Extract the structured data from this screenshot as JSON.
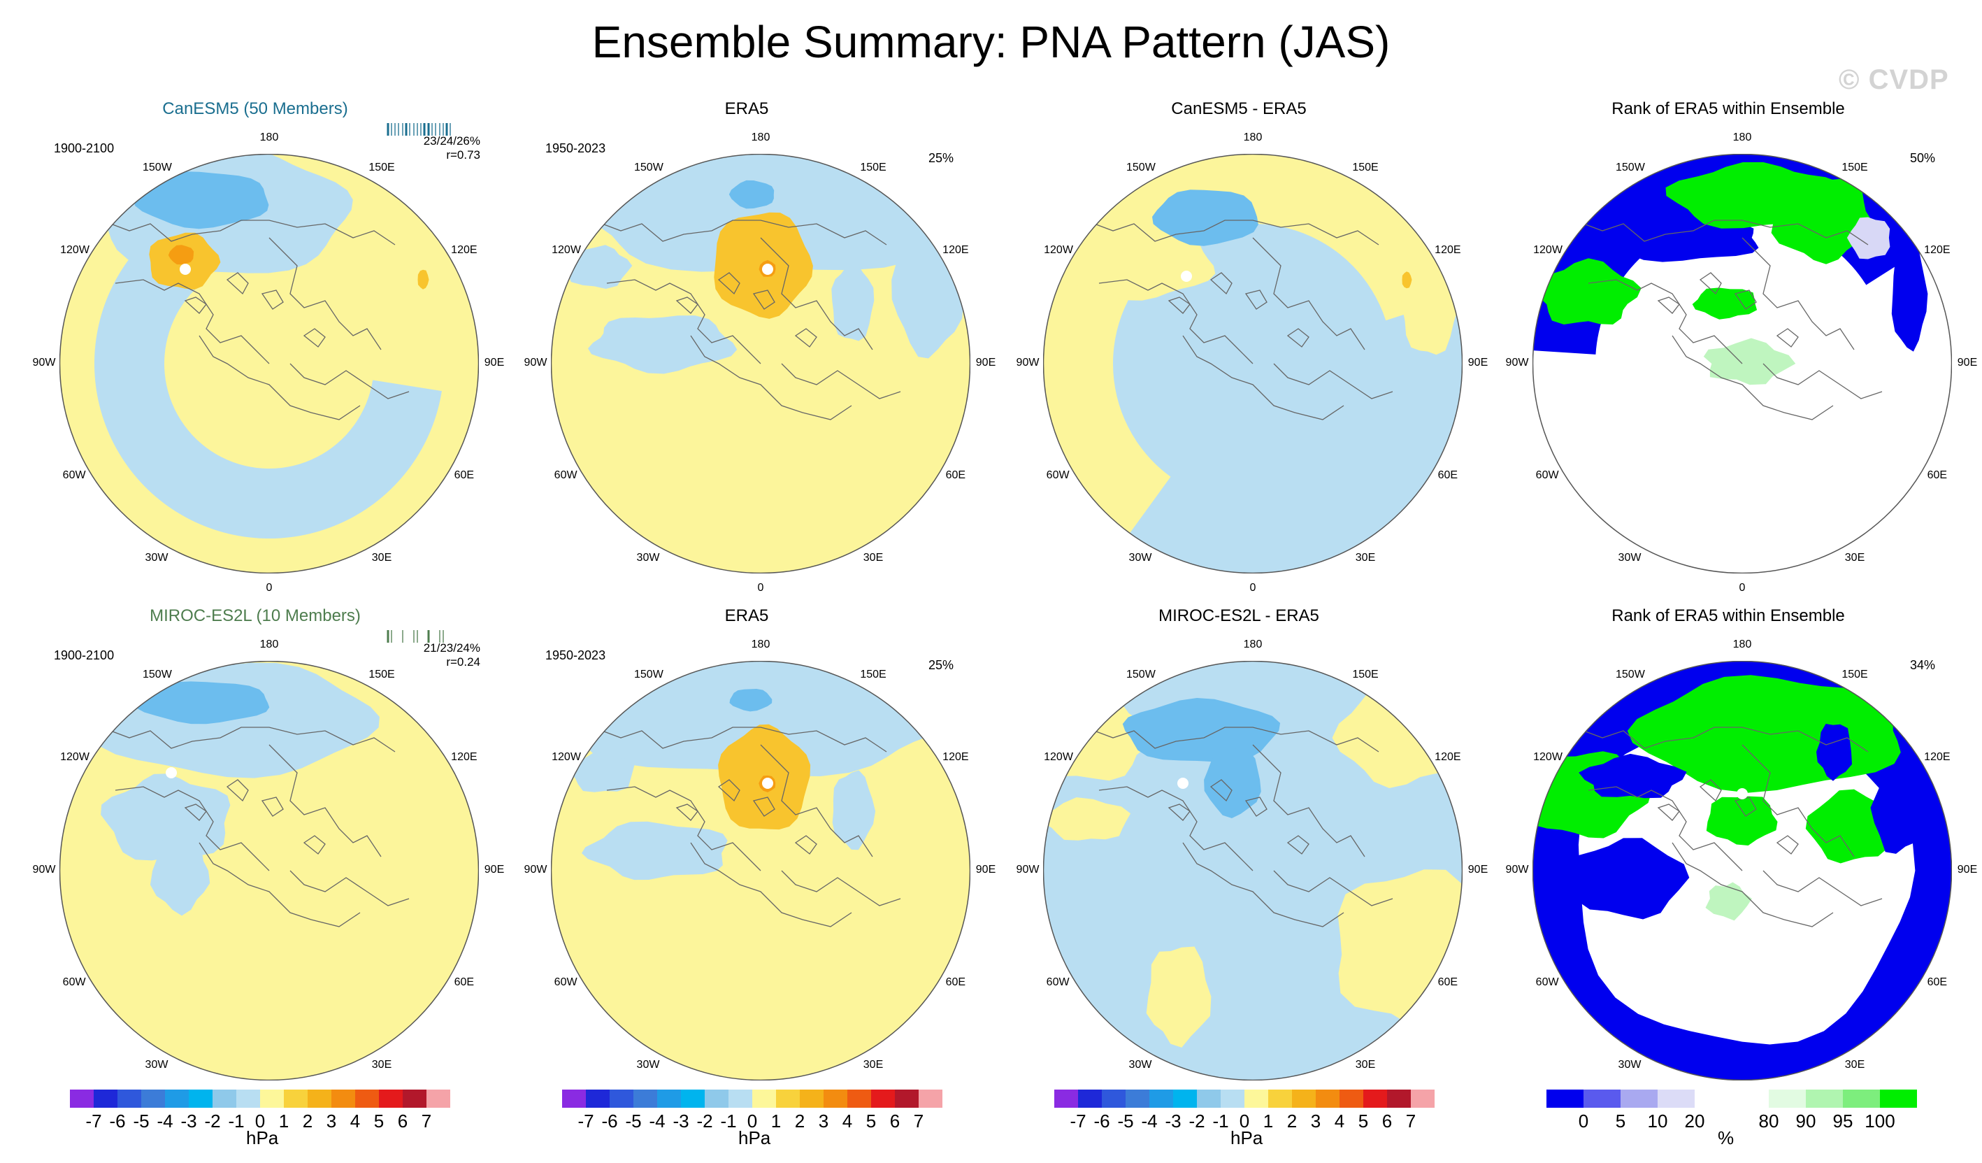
{
  "title": "Ensemble Summary: PNA Pattern (JAS)",
  "watermark": "© CVDP",
  "lon_labels": [
    "180",
    "150E",
    "120E",
    "90E",
    "60E",
    "30E",
    "0",
    "30W",
    "60W",
    "90W",
    "120W",
    "150W"
  ],
  "panels": [
    {
      "title": "CanESM5 (50 Members)",
      "period": "1900-2100",
      "stats_line1": "23/24/26%",
      "stats_line2": "r=0.73",
      "percent": ""
    },
    {
      "title": "ERA5",
      "period": "1950-2023",
      "stats_line1": "",
      "stats_line2": "",
      "percent": "25%"
    },
    {
      "title": "CanESM5 - ERA5",
      "period": "",
      "stats_line1": "",
      "stats_line2": "",
      "percent": ""
    },
    {
      "title": "Rank of ERA5 within Ensemble",
      "period": "",
      "stats_line1": "",
      "stats_line2": "",
      "percent": "50%"
    },
    {
      "title": "MIROC-ES2L (10 Members)",
      "period": "1900-2100",
      "stats_line1": "21/23/24%",
      "stats_line2": "r=0.24",
      "percent": ""
    },
    {
      "title": "ERA5",
      "period": "1950-2023",
      "stats_line1": "",
      "stats_line2": "",
      "percent": "25%"
    },
    {
      "title": "MIROC-ES2L - ERA5",
      "period": "",
      "stats_line1": "",
      "stats_line2": "",
      "percent": ""
    },
    {
      "title": "Rank of ERA5 within Ensemble",
      "period": "",
      "stats_line1": "",
      "stats_line2": "",
      "percent": "34%"
    }
  ],
  "colorbar_hpa": {
    "labels": [
      "-7",
      "-6",
      "-5",
      "-4",
      "-3",
      "-2",
      "-1",
      "0",
      "1",
      "2",
      "3",
      "4",
      "5",
      "6",
      "7"
    ],
    "unit": "hPa",
    "colors": [
      "#8a2be2",
      "#1e28d8",
      "#2f58dc",
      "#3c7cd8",
      "#1f9be6",
      "#00b4ee",
      "#8fc9ea",
      "#b8def2",
      "#fdf79a",
      "#f8d23c",
      "#f5b21a",
      "#f38c10",
      "#ef5b12",
      "#e41a1c",
      "#b2182b",
      "#f5a3a8"
    ]
  },
  "colorbar_rank": {
    "labels": [
      "0",
      "5",
      "10",
      "20",
      "80",
      "90",
      "95",
      "100"
    ],
    "unit": "%",
    "colors": [
      "#0000ee",
      "#5a5aee",
      "#a9a9f0",
      "#dcdcf7",
      "#ffffff",
      "#ffffff",
      "#e2fbe2",
      "#b0f5b0",
      "#7dee7d",
      "#00ee00"
    ]
  },
  "map_colors": {
    "yellow": "#fcf59b",
    "lightblue": "#b9def2",
    "midblue": "#6cbdee",
    "orange": "#f8c42e",
    "darkorange": "#f59d12",
    "rank_blue": "#0000ee",
    "rank_green": "#00ee00",
    "rank_lightgreen": "#bff5bf",
    "rank_lightblue": "#d8d8f6",
    "coast": "#666666"
  }
}
